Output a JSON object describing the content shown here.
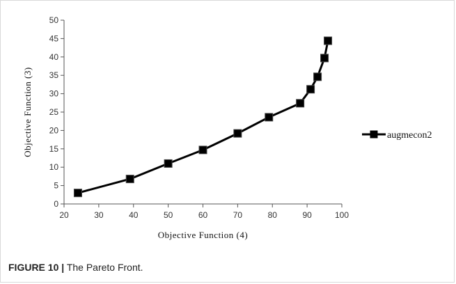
{
  "caption": {
    "label": "FIGURE 10 |",
    "text": "The Pareto Front."
  },
  "chart_data": {
    "type": "line",
    "title": "",
    "xlabel": "Objective  Function  (4)",
    "ylabel": "Objective  Function  (3)",
    "xlim": [
      20,
      100
    ],
    "ylim": [
      0,
      50
    ],
    "xticks": [
      20,
      30,
      40,
      50,
      60,
      70,
      80,
      90,
      100
    ],
    "yticks": [
      0,
      5,
      10,
      15,
      20,
      25,
      30,
      35,
      40,
      45,
      50
    ],
    "grid": false,
    "legend_position": "right",
    "series": [
      {
        "name": "augmecon2",
        "color": "#000000",
        "marker": "square",
        "x": [
          24,
          39,
          50,
          60,
          70,
          79,
          88,
          91,
          93,
          95,
          96
        ],
        "y": [
          3,
          6.8,
          11,
          14.7,
          19.2,
          23.6,
          27.4,
          31.2,
          34.6,
          39.7,
          44.4
        ]
      }
    ]
  }
}
